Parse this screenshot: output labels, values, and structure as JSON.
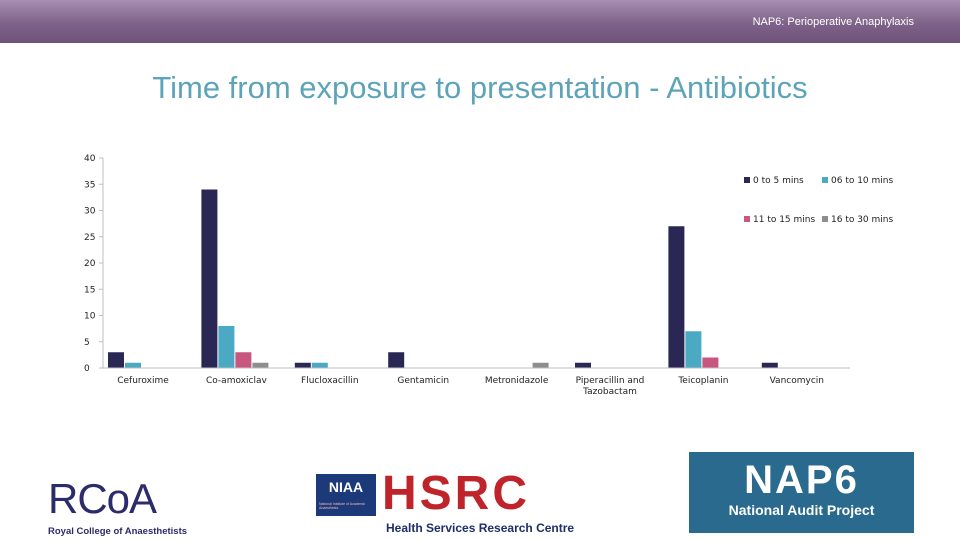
{
  "header": {
    "text": "NAP6: Perioperative Anaphylaxis"
  },
  "title": "Time from exposure to presentation - Antibiotics",
  "chart_data": {
    "type": "bar",
    "categories": [
      "Cefuroxime",
      "Co-amoxiclav",
      "Flucloxacillin",
      "Gentamicin",
      "Metronidazole",
      "Piperacillin and Tazobactam",
      "Teicoplanin",
      "Vancomycin"
    ],
    "series": [
      {
        "name": "0 to 5 mins",
        "color": "#2b2755",
        "values": [
          3,
          34,
          1,
          3,
          0,
          1,
          27,
          1
        ]
      },
      {
        "name": "06 to 10 mins",
        "color": "#4ba9c3",
        "values": [
          1,
          8,
          1,
          0,
          0,
          0,
          7,
          0
        ]
      },
      {
        "name": "11 to 15 mins",
        "color": "#c7577f",
        "values": [
          0,
          3,
          0,
          0,
          0,
          0,
          2,
          0
        ]
      },
      {
        "name": "16 to 30 mins",
        "color": "#8e8e8e",
        "values": [
          0,
          1,
          0,
          0,
          1,
          0,
          0,
          0
        ]
      }
    ],
    "ylim": [
      0,
      40
    ],
    "yticks": [
      0,
      5,
      10,
      15,
      20,
      25,
      30,
      35,
      40
    ],
    "legend": "top-right",
    "grid": false
  },
  "logos": {
    "rcoa": {
      "letters": "RCoA",
      "tagline": "Royal College of Anaesthetists"
    },
    "niaa": {
      "text": "NIAA",
      "sub": "National Institute of Academic Anaesthesia"
    },
    "hsrc": {
      "text": "HSRC",
      "sub": "Health Services Research Centre"
    },
    "nap6": {
      "text": "NAP6",
      "sub": "National Audit Project"
    }
  }
}
